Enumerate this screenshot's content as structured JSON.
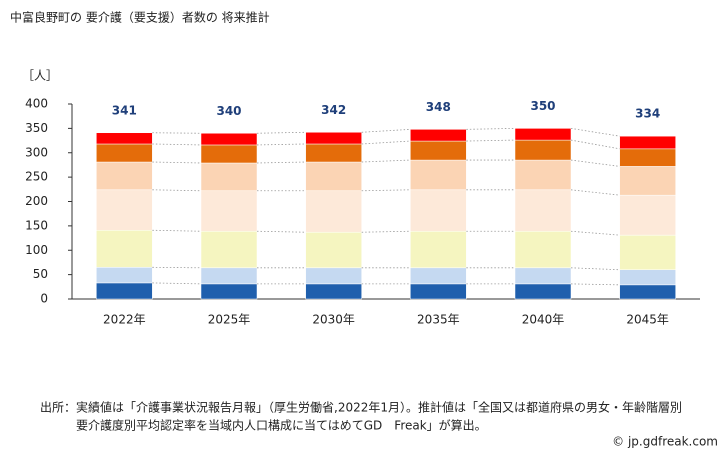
{
  "chart_data": {
    "type": "stacked-bar",
    "title": "中富良野町の 要介護（要支援）者数の 将来推計",
    "y_unit": "［人］",
    "categories": [
      "2022年",
      "2025年",
      "2030年",
      "2035年",
      "2040年",
      "2045年"
    ],
    "series": [
      {
        "color": "#1f5fad",
        "values": [
          33,
          31,
          31,
          31,
          31,
          29
        ]
      },
      {
        "color": "#c5d9f1",
        "values": [
          32,
          33,
          33,
          33,
          33,
          31
        ]
      },
      {
        "color": "#f5f5c0",
        "values": [
          76,
          75,
          73,
          75,
          75,
          71
        ]
      },
      {
        "color": "#fde9d9",
        "values": [
          83,
          83,
          85,
          85,
          85,
          82
        ]
      },
      {
        "color": "#fbd4b4",
        "values": [
          57,
          57,
          59,
          61,
          61,
          59
        ]
      },
      {
        "color": "#e46c0a",
        "values": [
          37,
          37,
          37,
          39,
          41,
          36
        ]
      },
      {
        "color": "#ff0000",
        "values": [
          23,
          24,
          24,
          24,
          24,
          26
        ]
      }
    ],
    "totals": [
      341,
      340,
      342,
      348,
      350,
      334
    ],
    "ylim": [
      0,
      400
    ],
    "yticks": [
      0,
      50,
      100,
      150,
      200,
      250,
      300,
      350,
      400
    ],
    "source": [
      "出所：実績値は「介護事業状況報告月報」（厚生労働省,2022年1月）。推計値は「全国又は都道府県の男女・年齢階層別",
      "要介護度別平均認定率を当域内人口構成に当てはめてGD　Freak」が算出。"
    ],
    "credit": "© jp.gdfreak.com"
  }
}
